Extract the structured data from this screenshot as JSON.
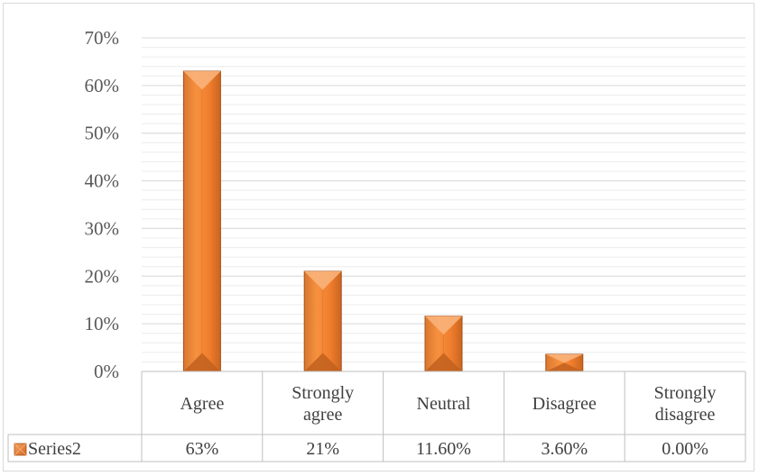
{
  "chart_data": {
    "type": "bar",
    "categories": [
      "Agree",
      "Strongly agree",
      "Neutral",
      "Disagree",
      "Strongly disagree"
    ],
    "category_lines": [
      [
        "Agree"
      ],
      [
        "Strongly",
        "agree"
      ],
      [
        "Neutral"
      ],
      [
        "Disagree"
      ],
      [
        "Strongly",
        "disagree"
      ]
    ],
    "series": [
      {
        "name": "Series2",
        "values": [
          0.63,
          0.21,
          0.116,
          0.036,
          0.0
        ],
        "table_labels": [
          "63%",
          "21%",
          "11.60%",
          "3.60%",
          "0.00%"
        ]
      }
    ],
    "ylim": [
      0,
      0.7
    ],
    "yticks": [
      0,
      0.1,
      0.2,
      0.3,
      0.4,
      0.5,
      0.6,
      0.7
    ],
    "ytick_labels": [
      "0%",
      "10%",
      "20%",
      "30%",
      "40%",
      "50%",
      "60%",
      "70%"
    ],
    "minor_grid_step": 0.02,
    "grid": true,
    "data_table": true,
    "legend": "data-table",
    "colors": {
      "bar_face": "#f79646",
      "bar_light": "#f9b27a",
      "bar_dark": "#c0601f",
      "bar_edge": "#a5501a",
      "grid": "#d9d9d9",
      "axis": "#bfbfbf"
    }
  }
}
